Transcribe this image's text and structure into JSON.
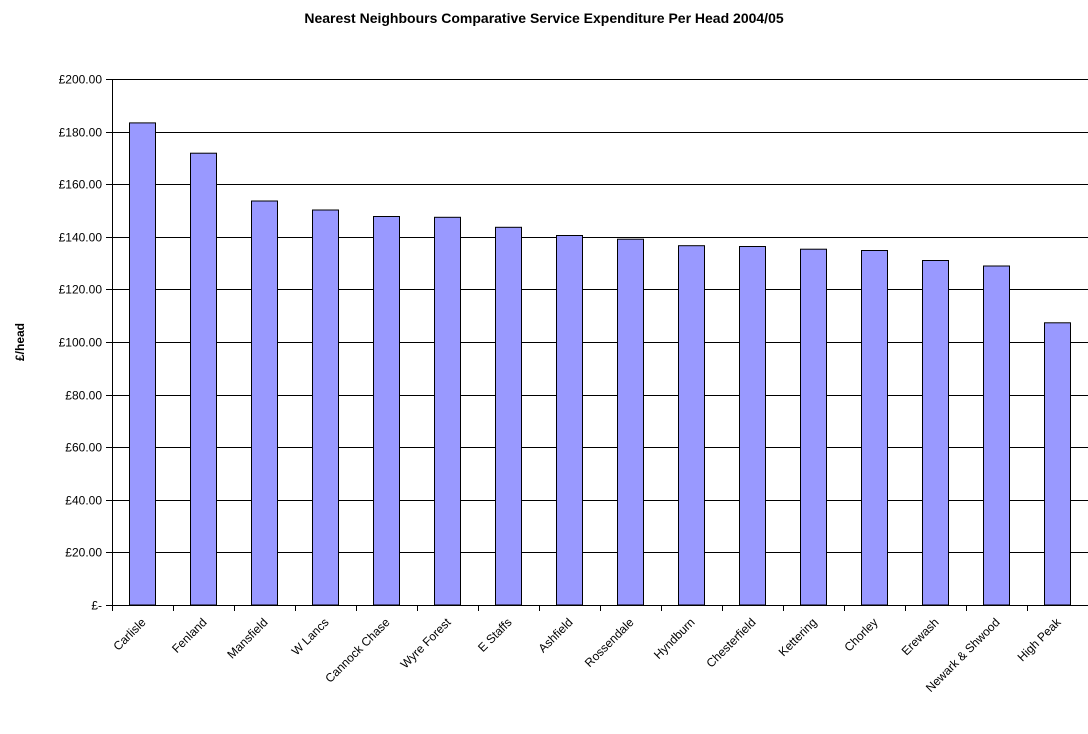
{
  "chart_data": {
    "type": "bar",
    "title": "Nearest Neighbours Comparative Service Expenditure Per Head 2004/05",
    "xlabel": "",
    "ylabel": "£/head",
    "ylim": [
      0,
      200
    ],
    "yticks": [
      0,
      20,
      40,
      60,
      80,
      100,
      120,
      140,
      160,
      180,
      200
    ],
    "ytick_labels": [
      "£-",
      "£20.00",
      "£40.00",
      "£60.00",
      "£80.00",
      "£100.00",
      "£120.00",
      "£140.00",
      "£160.00",
      "£180.00",
      "£200.00"
    ],
    "grid": true,
    "legend": "none",
    "categories": [
      "Carlisle",
      "Fenland",
      "Mansfield",
      "W Lancs",
      "Cannock Chase",
      "Wyre Forest",
      "E Staffs",
      "Ashfield",
      "Rossendale",
      "Hyndburn",
      "Chesterfield",
      "Kettering",
      "Chorley",
      "Erewash",
      "Newark & Shwood",
      "High Peak"
    ],
    "values": [
      183.3,
      171.8,
      153.6,
      150.2,
      147.7,
      147.4,
      143.6,
      140.5,
      139.1,
      136.6,
      136.3,
      135.3,
      134.8,
      131.0,
      128.9,
      107.3
    ],
    "colors": {
      "bar_fill": "#9999FF",
      "bar_stroke": "#000000",
      "grid": "#000000",
      "axis": "#000000"
    }
  }
}
